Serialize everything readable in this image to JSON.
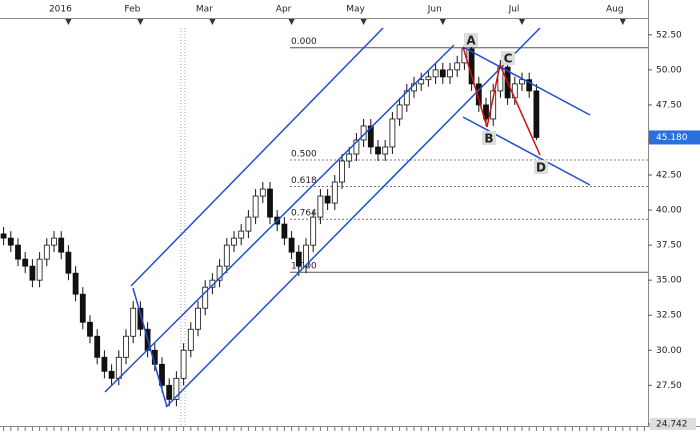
{
  "chart_data": {
    "type": "candlestick",
    "categories": [
      null,
      null,
      null,
      null,
      null,
      null,
      null,
      null,
      null,
      "2016",
      null,
      null,
      null,
      null,
      null,
      null,
      null,
      null,
      null,
      "Feb",
      null,
      null,
      null,
      null,
      null,
      null,
      null,
      null,
      null,
      "Mar",
      null,
      null,
      null,
      null,
      null,
      null,
      null,
      null,
      null,
      null,
      "Apr",
      null,
      null,
      null,
      null,
      null,
      null,
      null,
      null,
      null,
      "May",
      null,
      null,
      null,
      null,
      null,
      null,
      null,
      null,
      null,
      null,
      "Jun",
      null,
      null,
      null,
      null,
      null,
      null,
      null,
      null,
      null,
      null,
      "Jul",
      null,
      null,
      null,
      null,
      null,
      null,
      null,
      null,
      null,
      null,
      null,
      null,
      null,
      "Aug",
      null,
      null,
      null
    ],
    "open": [
      38.3,
      38,
      37.5,
      36.5,
      36,
      35,
      36.5,
      37.5,
      38,
      37,
      35.5,
      34,
      32,
      31,
      29.5,
      28.5,
      28,
      29.5,
      31,
      33,
      31.5,
      30,
      29,
      27.5,
      26.5,
      28,
      30,
      31.5,
      33,
      34.5,
      35,
      36,
      37.5,
      38,
      38.5,
      39.5,
      41,
      41.5,
      39.5,
      39,
      38,
      37,
      36,
      37.5,
      39.5,
      41,
      40.5,
      42,
      43.5,
      44,
      45,
      46,
      44.5,
      44,
      44.5,
      46.5,
      47.5,
      48.5,
      49,
      49.3,
      49.5,
      50,
      49.5,
      50,
      50.5,
      51.5,
      49,
      47.5,
      46.5,
      48.5,
      50.2,
      48,
      49,
      49.3,
      48.5,
      null,
      null,
      null,
      null,
      null,
      null,
      null,
      null,
      null,
      null,
      null,
      null,
      null,
      null,
      null
    ],
    "high": [
      38.8,
      38.5,
      38,
      37,
      36.5,
      37,
      38,
      38.5,
      38.5,
      37.5,
      36,
      34.5,
      32.5,
      31.5,
      30,
      29,
      30,
      31.5,
      33.5,
      33.5,
      32,
      30.5,
      29.5,
      28,
      28.5,
      30.5,
      32,
      33.5,
      35,
      35.5,
      36.5,
      38,
      38.5,
      39,
      40,
      41.5,
      42,
      42,
      40,
      39.5,
      38.5,
      37.5,
      38,
      40,
      41.5,
      41.5,
      42.5,
      44,
      44.5,
      45.5,
      46.5,
      46.5,
      45,
      45,
      47,
      48,
      49,
      49.5,
      49.8,
      50,
      50.5,
      50.5,
      50.5,
      51,
      51.8,
      52,
      49.5,
      48,
      49,
      50.7,
      50.7,
      49.5,
      49.8,
      49.8,
      49,
      null,
      null,
      null,
      null,
      null,
      null,
      null,
      null,
      null,
      null,
      null,
      null,
      null,
      null,
      null
    ],
    "low": [
      37.5,
      37,
      36,
      35.5,
      34.5,
      34.5,
      36,
      37,
      36.5,
      35,
      33.5,
      31.5,
      30.5,
      29,
      28,
      27.5,
      27.5,
      29,
      30.5,
      31,
      29.5,
      28.5,
      27,
      26,
      26,
      27.5,
      29.5,
      31,
      32.5,
      34,
      34.5,
      35.5,
      37,
      37.5,
      38,
      39,
      40.5,
      39,
      38.5,
      37.5,
      36.5,
      35.3,
      35.5,
      37,
      39,
      40,
      40,
      41.5,
      43,
      43.5,
      44.5,
      44,
      43.5,
      43.5,
      44,
      46,
      47,
      48,
      48.5,
      48.8,
      49,
      49,
      49,
      49.5,
      50,
      48.5,
      47,
      46,
      46,
      48,
      47.5,
      47.5,
      48.5,
      48,
      45,
      null,
      null,
      null,
      null,
      null,
      null,
      null,
      null,
      null,
      null,
      null,
      null,
      null,
      null,
      null
    ],
    "close": [
      38,
      37.5,
      36.5,
      36,
      35,
      36.5,
      37.5,
      38,
      37,
      35.5,
      34,
      32,
      31,
      29.5,
      28.5,
      28,
      29.5,
      31,
      33,
      31.5,
      30,
      29,
      27.5,
      26.5,
      28,
      30,
      31.5,
      33,
      34.5,
      35,
      36,
      37.5,
      38,
      38.5,
      39.5,
      41,
      41.5,
      39.5,
      39,
      38,
      37,
      36,
      37.5,
      39.5,
      41,
      40.5,
      42,
      43.5,
      44,
      45,
      46,
      44.5,
      44,
      44.5,
      46.5,
      47.5,
      48.5,
      49,
      49.3,
      49.5,
      50,
      49.5,
      50,
      50.5,
      51.5,
      49,
      47.5,
      46.5,
      48.5,
      50.2,
      48,
      49,
      49.3,
      48.5,
      45.18,
      null,
      null,
      null,
      null,
      null,
      null,
      null,
      null,
      null,
      null,
      null,
      null,
      null,
      null,
      null
    ],
    "ylim": [
      24.742,
      53.7
    ],
    "yticks": [
      24.742,
      {
        "value": 27.5,
        "label": "27.50"
      },
      {
        "value": 30,
        "label": "30.00"
      },
      {
        "value": 32.5,
        "label": "32.50"
      },
      {
        "value": 35,
        "label": "35.00"
      },
      {
        "value": 37.5,
        "label": "37.50"
      },
      {
        "value": 40,
        "label": "40.00"
      },
      {
        "value": 42.5,
        "label": "42.50"
      },
      {
        "value": 45,
        "label": "45.00"
      },
      {
        "value": 47.5,
        "label": "47.50"
      },
      {
        "value": 50,
        "label": "50.00"
      },
      {
        "value": 52.5,
        "label": "52.50"
      }
    ],
    "last_price": {
      "value": 45.18,
      "label": "45.180"
    },
    "fibonacci": {
      "high": 51.58,
      "low": 35.57,
      "levels": [
        {
          "value": 0,
          "label": "0.000"
        },
        {
          "value": 0.5,
          "label": "0.500"
        },
        {
          "value": 0.618,
          "label": "0.618"
        },
        {
          "value": 0.764,
          "label": "0.764"
        },
        {
          "value": 1,
          "label": "1.000"
        }
      ]
    },
    "pattern_points": [
      "A",
      "B",
      "C",
      "D"
    ]
  }
}
